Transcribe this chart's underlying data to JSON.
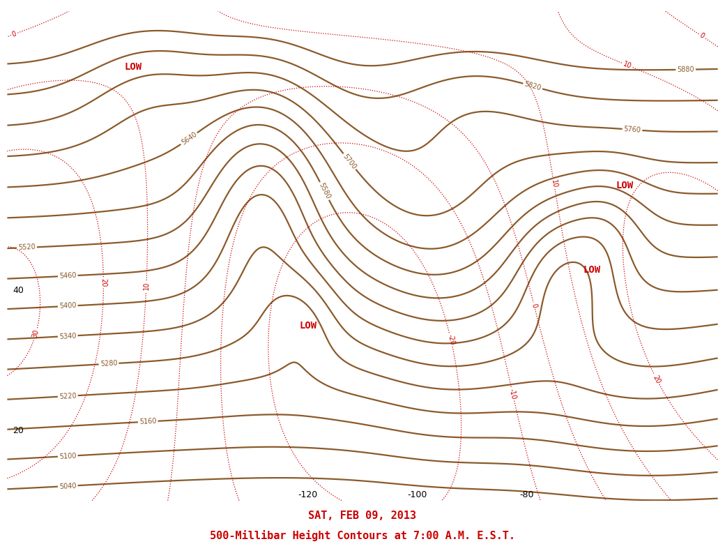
{
  "title_bottom": "500-Millibar Height Contours at 7:00 A.M. E.S.T.",
  "date_label": "SAT, FEB 09, 2013",
  "title_color": "#cc0000",
  "date_color": "#cc0000",
  "bg_color": "#ffffff",
  "contour_color": "#8B5A2B",
  "dotted_color": "#cc0000",
  "map_color": "#000000",
  "low_color": "#cc0000",
  "figsize": [
    10.4,
    7.8
  ],
  "dpi": 100,
  "low_labels": [
    {
      "lon": -152,
      "lat": 72,
      "text": "LOW"
    },
    {
      "lon": -120,
      "lat": 35,
      "text": "LOW"
    },
    {
      "lon": -68,
      "lat": 43,
      "text": "LOW"
    },
    {
      "lon": -62,
      "lat": 55,
      "text": "LOW"
    }
  ],
  "lon_labels": [
    -120,
    -100,
    -80
  ],
  "lat_labels": [
    20,
    40
  ],
  "contour_label_size": 7,
  "dotted_label_size": 7
}
